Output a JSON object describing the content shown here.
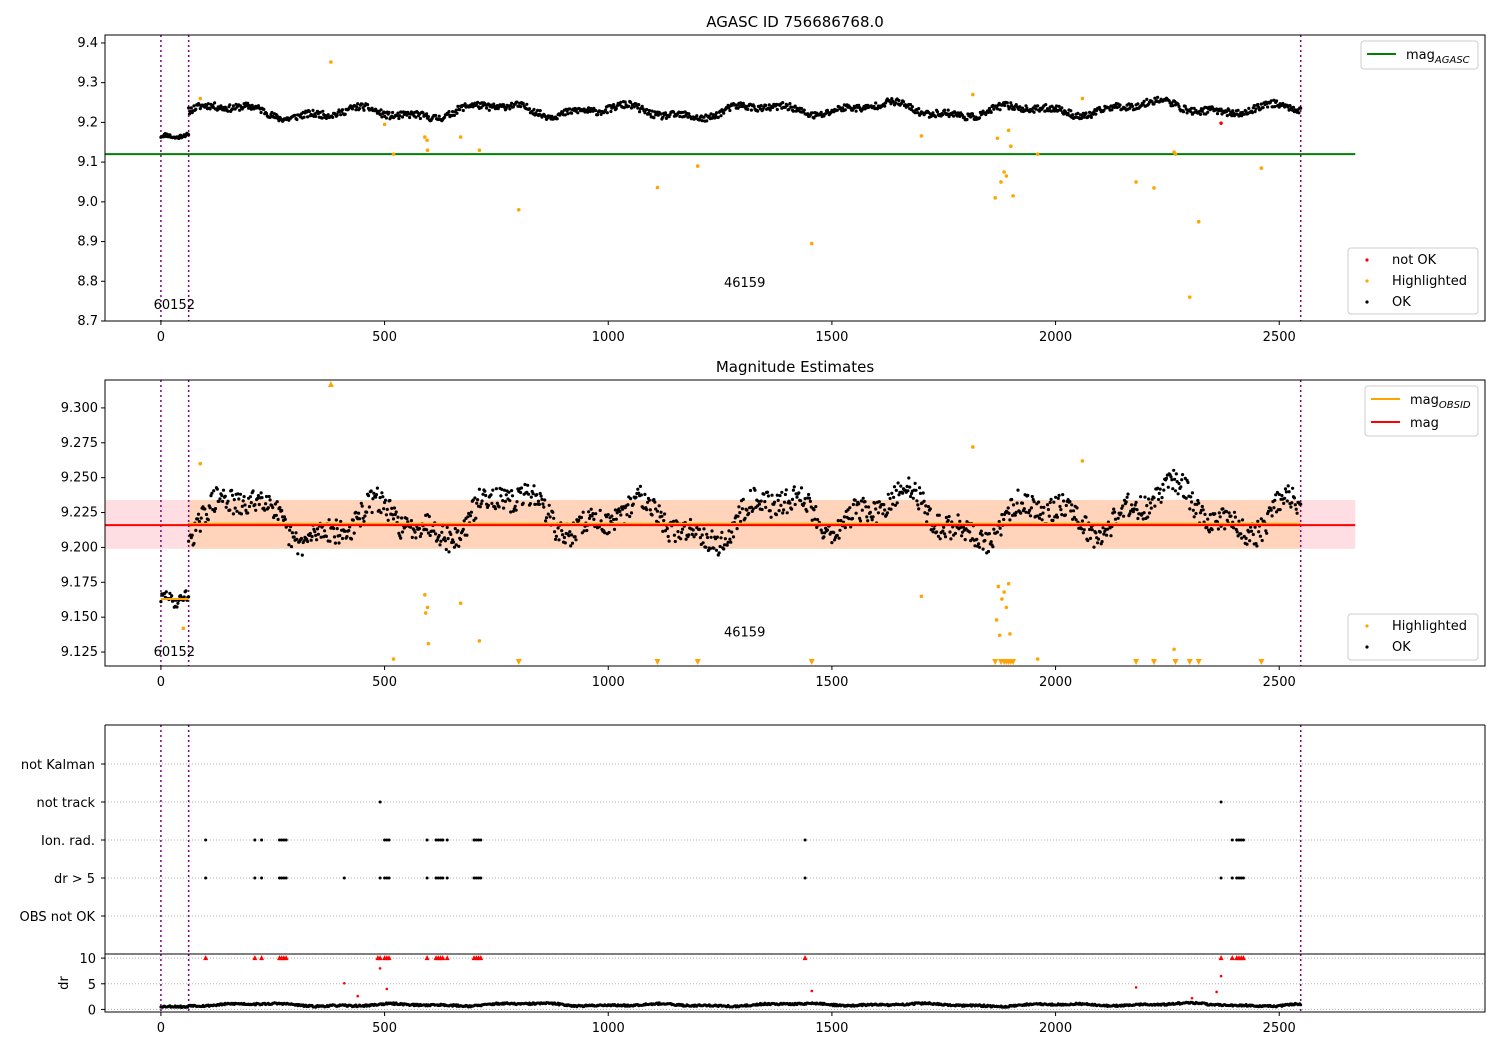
{
  "chart_data": [
    {
      "panel": "agasc",
      "type": "scatter",
      "title": "AGASC ID 756686768.0",
      "xlim": [
        -125,
        2960
      ],
      "ylim": [
        8.7,
        9.42
      ],
      "xticks": [
        0,
        500,
        1000,
        1500,
        2000,
        2500
      ],
      "yticks": [
        8.7,
        8.8,
        8.9,
        9.0,
        9.1,
        9.2,
        9.3,
        9.4
      ],
      "vlines": [
        0,
        62,
        2548
      ],
      "hline": {
        "name": "mag_AGASC",
        "value": 9.12,
        "color": "#008000",
        "x": [
          -125,
          2670
        ]
      },
      "legends": [
        {
          "position": "top-right",
          "entries": [
            {
              "label": "mag",
              "sub": "AGASC",
              "kind": "line",
              "color": "#008000"
            }
          ]
        },
        {
          "position": "bottom-right",
          "entries": [
            {
              "label": "not OK",
              "kind": "dot",
              "color": "#ff0000"
            },
            {
              "label": "Highlighted",
              "kind": "dot",
              "color": "#ffa500"
            },
            {
              "label": "OK",
              "kind": "dot",
              "color": "#000000"
            }
          ]
        }
      ],
      "annotations": [
        {
          "text": "60152",
          "x": 30,
          "y": 8.73
        },
        {
          "text": "46159",
          "x": 1305,
          "y": 8.785
        }
      ],
      "series": [
        {
          "name": "OK",
          "color": "#000000",
          "segments": [
            {
              "x": [
                0,
                62
              ],
              "level": [
                9.165,
                9.165
              ],
              "amp": 0.012
            },
            {
              "x": [
                62,
                2548
              ],
              "level": [
                9.225,
                9.235
              ],
              "amp": 0.022
            }
          ]
        },
        {
          "name": "Highlighted",
          "color": "#ffa500",
          "points": [
            [
              380,
              9.352
            ],
            [
              88,
              9.26
            ],
            [
              590,
              9.163
            ],
            [
              595,
              9.155
            ],
            [
              596,
              9.13
            ],
            [
              670,
              9.163
            ],
            [
              712,
              9.13
            ],
            [
              800,
              8.98
            ],
            [
              1110,
              9.036
            ],
            [
              1200,
              9.09
            ],
            [
              1455,
              8.895
            ],
            [
              1700,
              9.166
            ],
            [
              1815,
              9.27
            ],
            [
              1865,
              9.01
            ],
            [
              1870,
              9.16
            ],
            [
              1878,
              9.05
            ],
            [
              1885,
              9.075
            ],
            [
              1890,
              9.065
            ],
            [
              1895,
              9.18
            ],
            [
              1900,
              9.14
            ],
            [
              1905,
              9.015
            ],
            [
              1960,
              9.12
            ],
            [
              2060,
              9.26
            ],
            [
              2180,
              9.05
            ],
            [
              2220,
              9.035
            ],
            [
              2265,
              9.125
            ],
            [
              2268,
              9.12
            ],
            [
              2300,
              8.76
            ],
            [
              2320,
              8.95
            ],
            [
              2460,
              9.085
            ],
            [
              500,
              9.195
            ],
            [
              520,
              9.12
            ]
          ]
        },
        {
          "name": "not OK",
          "color": "#ff0000",
          "points": [
            [
              2370,
              9.198
            ]
          ]
        }
      ]
    },
    {
      "panel": "estimates",
      "type": "scatter",
      "title": "Magnitude Estimates",
      "xlim": [
        -125,
        2960
      ],
      "ylim": [
        9.115,
        9.32
      ],
      "xticks": [
        0,
        500,
        1000,
        1500,
        2000,
        2500
      ],
      "yticks": [
        9.125,
        9.15,
        9.175,
        9.2,
        9.225,
        9.25,
        9.275,
        9.3
      ],
      "ytick_labels": [
        "9.125",
        "9.150",
        "9.175",
        "9.200",
        "9.225",
        "9.250",
        "9.275",
        "9.300"
      ],
      "vlines": [
        0,
        62,
        2548
      ],
      "mag_band": {
        "lo": 9.199,
        "hi": 9.234,
        "x": [
          -125,
          2670
        ]
      },
      "mag_line": {
        "name": "mag",
        "value": 9.216,
        "color": "#ff0000"
      },
      "obsid_lines": [
        {
          "x": [
            0,
            62
          ],
          "value": 9.163,
          "color": "#ffa500"
        },
        {
          "x": [
            62,
            2548
          ],
          "value": 9.217,
          "color": "#ffa500"
        }
      ],
      "legends": [
        {
          "position": "top-right",
          "entries": [
            {
              "label": "mag",
              "sub": "OBSID",
              "kind": "line",
              "color": "#ffa500"
            },
            {
              "label": "mag",
              "kind": "line",
              "color": "#ff0000"
            }
          ]
        },
        {
          "position": "bottom-right",
          "entries": [
            {
              "label": "Highlighted",
              "kind": "dot",
              "color": "#ffa500"
            },
            {
              "label": "OK",
              "kind": "dot",
              "color": "#000000"
            }
          ]
        }
      ],
      "annotations": [
        {
          "text": "60152",
          "x": 30,
          "y": 9.122
        },
        {
          "text": "46159",
          "x": 1305,
          "y": 9.136
        }
      ],
      "series": [
        {
          "name": "OK",
          "color": "#000000",
          "segments": [
            {
              "x": [
                0,
                62
              ],
              "level": [
                9.163,
                9.163
              ],
              "amp": 0.009
            },
            {
              "x": [
                62,
                2548
              ],
              "level": [
                9.22,
                9.225
              ],
              "amp": 0.022
            }
          ]
        },
        {
          "name": "Highlighted",
          "color": "#ffa500",
          "points": [
            [
              88,
              9.26
            ],
            [
              50,
              9.142
            ],
            [
              590,
              9.166
            ],
            [
              592,
              9.153
            ],
            [
              596,
              9.157
            ],
            [
              598,
              9.131
            ],
            [
              670,
              9.16
            ],
            [
              712,
              9.133
            ],
            [
              520,
              9.12
            ],
            [
              1700,
              9.165
            ],
            [
              1815,
              9.272
            ],
            [
              1868,
              9.148
            ],
            [
              1872,
              9.172
            ],
            [
              1875,
              9.137
            ],
            [
              1880,
              9.163
            ],
            [
              1885,
              9.168
            ],
            [
              1890,
              9.157
            ],
            [
              1895,
              9.174
            ],
            [
              1898,
              9.138
            ],
            [
              1960,
              9.12
            ],
            [
              2060,
              9.262
            ],
            [
              2265,
              9.127
            ]
          ]
        },
        {
          "name": "Highlighted (off-scale)",
          "color": "#ffa500",
          "marker": "triangle",
          "points": [
            [
              380,
              "top"
            ],
            [
              800,
              "bottom"
            ],
            [
              1110,
              "bottom"
            ],
            [
              1200,
              "bottom"
            ],
            [
              1455,
              "bottom"
            ],
            [
              1865,
              "bottom"
            ],
            [
              1878,
              "bottom"
            ],
            [
              1885,
              "bottom"
            ],
            [
              1890,
              "bottom"
            ],
            [
              1895,
              "bottom"
            ],
            [
              1900,
              "bottom"
            ],
            [
              1905,
              "bottom"
            ],
            [
              2180,
              "bottom"
            ],
            [
              2220,
              "bottom"
            ],
            [
              2268,
              "bottom"
            ],
            [
              2300,
              "bottom"
            ],
            [
              2320,
              "bottom"
            ],
            [
              2460,
              "bottom"
            ]
          ]
        }
      ]
    },
    {
      "panel": "flags",
      "type": "scatter",
      "xlim": [
        -125,
        2960
      ],
      "categories": [
        "not Kalman",
        "not track",
        "Ion. rad.",
        "dr > 5",
        "OBS not OK"
      ],
      "vlines": [
        0,
        62,
        2548
      ],
      "flag_points": {
        "not track": [
          490,
          2370
        ],
        "Ion. rad.": [
          100,
          210,
          225,
          265,
          270,
          275,
          280,
          500,
          505,
          510,
          595,
          615,
          620,
          625,
          630,
          640,
          700,
          705,
          710,
          715,
          1440,
          2395,
          2405,
          2410,
          2415,
          2420
        ],
        "dr > 5": [
          100,
          210,
          225,
          265,
          270,
          275,
          280,
          410,
          490,
          500,
          505,
          510,
          595,
          615,
          620,
          625,
          630,
          640,
          700,
          705,
          710,
          715,
          1440,
          2370,
          2395,
          2405,
          2410,
          2415,
          2420
        ]
      }
    },
    {
      "panel": "dr",
      "type": "scatter",
      "ylabel": "dr",
      "xlim": [
        -125,
        2960
      ],
      "ylim": [
        -0.5,
        10.8
      ],
      "yticks": [
        0,
        5,
        10
      ],
      "xticks": [
        0,
        500,
        1000,
        1500,
        2000,
        2500
      ],
      "vlines": [
        0,
        62,
        2548
      ],
      "dr_series": {
        "color": "#000000",
        "x": [
          0,
          2548
        ],
        "level": 0.9,
        "amp": 0.35
      },
      "clipped_points": [
        100,
        210,
        225,
        265,
        270,
        275,
        280,
        485,
        490,
        500,
        505,
        510,
        595,
        615,
        620,
        625,
        630,
        640,
        700,
        705,
        710,
        715,
        1440,
        2370,
        2395,
        2405,
        2410,
        2415,
        2420
      ],
      "mid_points": [
        [
          410,
          5.1
        ],
        [
          490,
          8.0
        ],
        [
          505,
          4.0
        ],
        [
          1455,
          3.6
        ],
        [
          2180,
          4.3
        ],
        [
          2360,
          3.4
        ],
        [
          2370,
          6.5
        ],
        [
          2305,
          2.2
        ],
        [
          440,
          2.6
        ]
      ]
    }
  ]
}
